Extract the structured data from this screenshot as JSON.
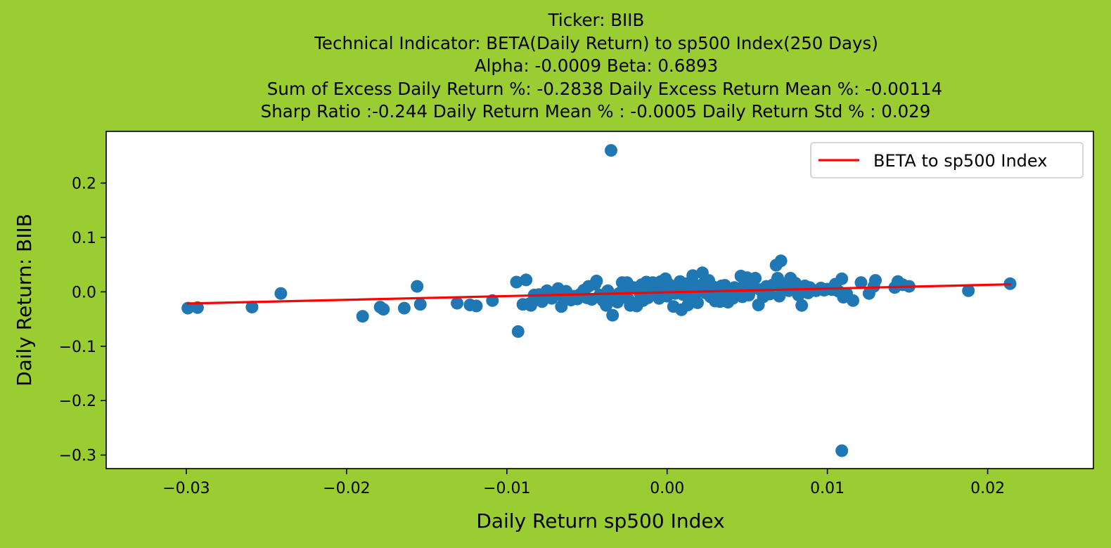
{
  "figure": {
    "background": "#9acd32",
    "title_lines": [
      "Ticker: BIIB",
      "Technical Indicator: BETA(Daily Return) to sp500 Index(250 Days)",
      "Alpha: -0.0009   Beta: 0.6893",
      "Sum of Excess Daily Return %: -0.2838   Daily Excess Return Mean %: -0.00114",
      "Sharp Ratio :-0.244    Daily Return Mean % : -0.0005    Daily Return Std % : 0.029"
    ]
  },
  "chart_data": {
    "type": "scatter",
    "xlabel": "Daily Return sp500 Index",
    "ylabel": "Daily Return: BIIB",
    "xlim": [
      -0.035,
      0.0266
    ],
    "ylim": [
      -0.325,
      0.295
    ],
    "x_ticks": [
      -0.03,
      -0.02,
      -0.01,
      0.0,
      0.01,
      0.02
    ],
    "x_tick_labels": [
      "−0.03",
      "−0.02",
      "−0.01",
      "0.00",
      "0.01",
      "0.02"
    ],
    "y_ticks": [
      0.2,
      0.1,
      0.0,
      -0.1,
      -0.2,
      -0.3
    ],
    "y_tick_labels": [
      "0.2",
      "0.1",
      "0.0",
      "−0.1",
      "−0.2",
      "−0.3"
    ],
    "grid": false,
    "legend": {
      "position": "top-right",
      "entries": [
        "BETA to sp500 Index"
      ]
    },
    "colors": {
      "points": "#1f77b4",
      "line": "#ff0000",
      "plot_bg": "#ffffff"
    },
    "points": [
      {
        "x": -0.0299,
        "y": -0.03
      },
      {
        "x": -0.0293,
        "y": -0.029
      },
      {
        "x": -0.0259,
        "y": -0.028
      },
      {
        "x": -0.0241,
        "y": -0.003
      },
      {
        "x": -0.019,
        "y": -0.045
      },
      {
        "x": -0.0179,
        "y": -0.028
      },
      {
        "x": -0.0177,
        "y": -0.032
      },
      {
        "x": -0.0164,
        "y": -0.03
      },
      {
        "x": -0.0156,
        "y": 0.01
      },
      {
        "x": -0.0154,
        "y": -0.023
      },
      {
        "x": -0.0131,
        "y": -0.021
      },
      {
        "x": -0.0123,
        "y": -0.024
      },
      {
        "x": -0.0119,
        "y": -0.026
      },
      {
        "x": -0.0109,
        "y": -0.016
      },
      {
        "x": -0.0094,
        "y": 0.018
      },
      {
        "x": -0.0093,
        "y": -0.073
      },
      {
        "x": -0.009,
        "y": -0.023
      },
      {
        "x": -0.0088,
        "y": 0.022
      },
      {
        "x": -0.0086,
        "y": -0.022
      },
      {
        "x": -0.0085,
        "y": -0.025
      },
      {
        "x": -0.0083,
        "y": -0.006
      },
      {
        "x": -0.008,
        "y": -0.005
      },
      {
        "x": -0.0078,
        "y": -0.018
      },
      {
        "x": -0.0075,
        "y": 0.002
      },
      {
        "x": -0.0072,
        "y": -0.012
      },
      {
        "x": -0.007,
        "y": -0.002
      },
      {
        "x": -0.0068,
        "y": 0.006
      },
      {
        "x": -0.0066,
        "y": -0.027
      },
      {
        "x": -0.0065,
        "y": -0.01
      },
      {
        "x": -0.0063,
        "y": 0.001
      },
      {
        "x": -0.006,
        "y": -0.015
      },
      {
        "x": -0.0058,
        "y": -0.008
      },
      {
        "x": -0.0056,
        "y": -0.013
      },
      {
        "x": -0.0054,
        "y": -0.004
      },
      {
        "x": -0.0052,
        "y": 0.003
      },
      {
        "x": -0.005,
        "y": -0.011
      },
      {
        "x": -0.0049,
        "y": 0.01
      },
      {
        "x": -0.0047,
        "y": -0.014
      },
      {
        "x": -0.0045,
        "y": 0.014
      },
      {
        "x": -0.0044,
        "y": 0.02
      },
      {
        "x": -0.0042,
        "y": -0.006
      },
      {
        "x": -0.004,
        "y": -0.016
      },
      {
        "x": -0.0038,
        "y": -0.025
      },
      {
        "x": -0.0037,
        "y": 0.002
      },
      {
        "x": -0.0035,
        "y": 0.26
      },
      {
        "x": -0.0034,
        "y": -0.043
      },
      {
        "x": -0.0033,
        "y": -0.011
      },
      {
        "x": -0.0031,
        "y": -0.019
      },
      {
        "x": -0.003,
        "y": -0.003
      },
      {
        "x": -0.0028,
        "y": 0.017
      },
      {
        "x": -0.0027,
        "y": 0.006
      },
      {
        "x": -0.0025,
        "y": 0.017
      },
      {
        "x": -0.0024,
        "y": -0.014
      },
      {
        "x": -0.0023,
        "y": -0.025
      },
      {
        "x": -0.0021,
        "y": 0.008
      },
      {
        "x": -0.002,
        "y": -0.021
      },
      {
        "x": -0.0019,
        "y": -0.026
      },
      {
        "x": -0.0017,
        "y": -0.002
      },
      {
        "x": -0.0016,
        "y": 0.013
      },
      {
        "x": -0.0015,
        "y": -0.016
      },
      {
        "x": -0.0013,
        "y": 0.018
      },
      {
        "x": -0.0012,
        "y": -0.011
      },
      {
        "x": -0.0011,
        "y": 0.004
      },
      {
        "x": -0.0009,
        "y": 0.017
      },
      {
        "x": -0.0008,
        "y": -0.004
      },
      {
        "x": -0.0007,
        "y": 0.011
      },
      {
        "x": -0.0005,
        "y": -0.012
      },
      {
        "x": -0.0004,
        "y": 0.019
      },
      {
        "x": -0.0003,
        "y": 0.002
      },
      {
        "x": -0.0001,
        "y": 0.024
      },
      {
        "x": 0.0,
        "y": -0.008
      },
      {
        "x": 0.0001,
        "y": 0.014
      },
      {
        "x": 0.0003,
        "y": 0.007
      },
      {
        "x": 0.0004,
        "y": -0.027
      },
      {
        "x": 0.0005,
        "y": -0.003
      },
      {
        "x": 0.0007,
        "y": 0.01
      },
      {
        "x": 0.0008,
        "y": 0.019
      },
      {
        "x": 0.0009,
        "y": -0.033
      },
      {
        "x": 0.001,
        "y": -0.005
      },
      {
        "x": 0.0012,
        "y": 0.015
      },
      {
        "x": 0.0013,
        "y": -0.024
      },
      {
        "x": 0.0014,
        "y": 0.004
      },
      {
        "x": 0.0016,
        "y": 0.03
      },
      {
        "x": 0.0017,
        "y": -0.01
      },
      {
        "x": 0.0018,
        "y": 0.012
      },
      {
        "x": 0.0019,
        "y": -0.02
      },
      {
        "x": 0.0021,
        "y": 0.003
      },
      {
        "x": 0.0022,
        "y": 0.035
      },
      {
        "x": 0.0023,
        "y": 0.016
      },
      {
        "x": 0.0024,
        "y": -0.002
      },
      {
        "x": 0.0026,
        "y": 0.021
      },
      {
        "x": 0.0027,
        "y": -0.009
      },
      {
        "x": 0.0029,
        "y": 0.009
      },
      {
        "x": 0.003,
        "y": -0.017
      },
      {
        "x": 0.0031,
        "y": 0.001
      },
      {
        "x": 0.0033,
        "y": -0.018
      },
      {
        "x": 0.0034,
        "y": 0.011
      },
      {
        "x": 0.0035,
        "y": -0.007
      },
      {
        "x": 0.0036,
        "y": 0.012
      },
      {
        "x": 0.0038,
        "y": -0.019
      },
      {
        "x": 0.0039,
        "y": 0.004
      },
      {
        "x": 0.0041,
        "y": -0.012
      },
      {
        "x": 0.0042,
        "y": 0.008
      },
      {
        "x": 0.0044,
        "y": -0.003
      },
      {
        "x": 0.0046,
        "y": 0.029
      },
      {
        "x": 0.0047,
        "y": -0.009
      },
      {
        "x": 0.0048,
        "y": 0.012
      },
      {
        "x": 0.005,
        "y": 0.026
      },
      {
        "x": 0.0051,
        "y": -0.006
      },
      {
        "x": 0.0053,
        "y": 0.006
      },
      {
        "x": 0.0055,
        "y": 0.025
      },
      {
        "x": 0.0057,
        "y": -0.024
      },
      {
        "x": 0.0058,
        "y": 0.004
      },
      {
        "x": 0.006,
        "y": -0.009
      },
      {
        "x": 0.0062,
        "y": 0.01
      },
      {
        "x": 0.0064,
        "y": -0.004
      },
      {
        "x": 0.0066,
        "y": 0.013
      },
      {
        "x": 0.0068,
        "y": 0.049
      },
      {
        "x": 0.0069,
        "y": 0.025
      },
      {
        "x": 0.007,
        "y": -0.008
      },
      {
        "x": 0.0071,
        "y": 0.057
      },
      {
        "x": 0.0072,
        "y": 0.007
      },
      {
        "x": 0.0074,
        "y": 0.015
      },
      {
        "x": 0.0076,
        "y": 0.002
      },
      {
        "x": 0.0077,
        "y": 0.025
      },
      {
        "x": 0.0079,
        "y": 0.012
      },
      {
        "x": 0.008,
        "y": 0.016
      },
      {
        "x": 0.0082,
        "y": -0.006
      },
      {
        "x": 0.0083,
        "y": 0.007
      },
      {
        "x": 0.0084,
        "y": -0.025
      },
      {
        "x": 0.0086,
        "y": 0.011
      },
      {
        "x": 0.0088,
        "y": -0.002
      },
      {
        "x": 0.0089,
        "y": 0.008
      },
      {
        "x": 0.0091,
        "y": 0.003
      },
      {
        "x": 0.0093,
        "y": 0.002
      },
      {
        "x": 0.0096,
        "y": 0.007
      },
      {
        "x": 0.0098,
        "y": 0.003
      },
      {
        "x": 0.01,
        "y": 0.005
      },
      {
        "x": 0.0103,
        "y": 0.004
      },
      {
        "x": 0.0105,
        "y": 0.014
      },
      {
        "x": 0.0107,
        "y": 0.001
      },
      {
        "x": 0.0109,
        "y": 0.024
      },
      {
        "x": 0.0109,
        "y": -0.292
      },
      {
        "x": 0.011,
        "y": -0.01
      },
      {
        "x": 0.0112,
        "y": -0.003
      },
      {
        "x": 0.0116,
        "y": -0.016
      },
      {
        "x": 0.0121,
        "y": 0.017
      },
      {
        "x": 0.0126,
        "y": -0.003
      },
      {
        "x": 0.0129,
        "y": 0.01
      },
      {
        "x": 0.013,
        "y": 0.021
      },
      {
        "x": 0.0142,
        "y": 0.008
      },
      {
        "x": 0.0144,
        "y": 0.019
      },
      {
        "x": 0.0147,
        "y": 0.013
      },
      {
        "x": 0.0151,
        "y": 0.01
      },
      {
        "x": 0.0188,
        "y": 0.002
      },
      {
        "x": 0.0214,
        "y": 0.015
      }
    ],
    "regression_line": {
      "name": "BETA to sp500 Index",
      "x": [
        -0.0299,
        0.0214
      ],
      "y": [
        -0.0215,
        0.0138
      ]
    }
  }
}
